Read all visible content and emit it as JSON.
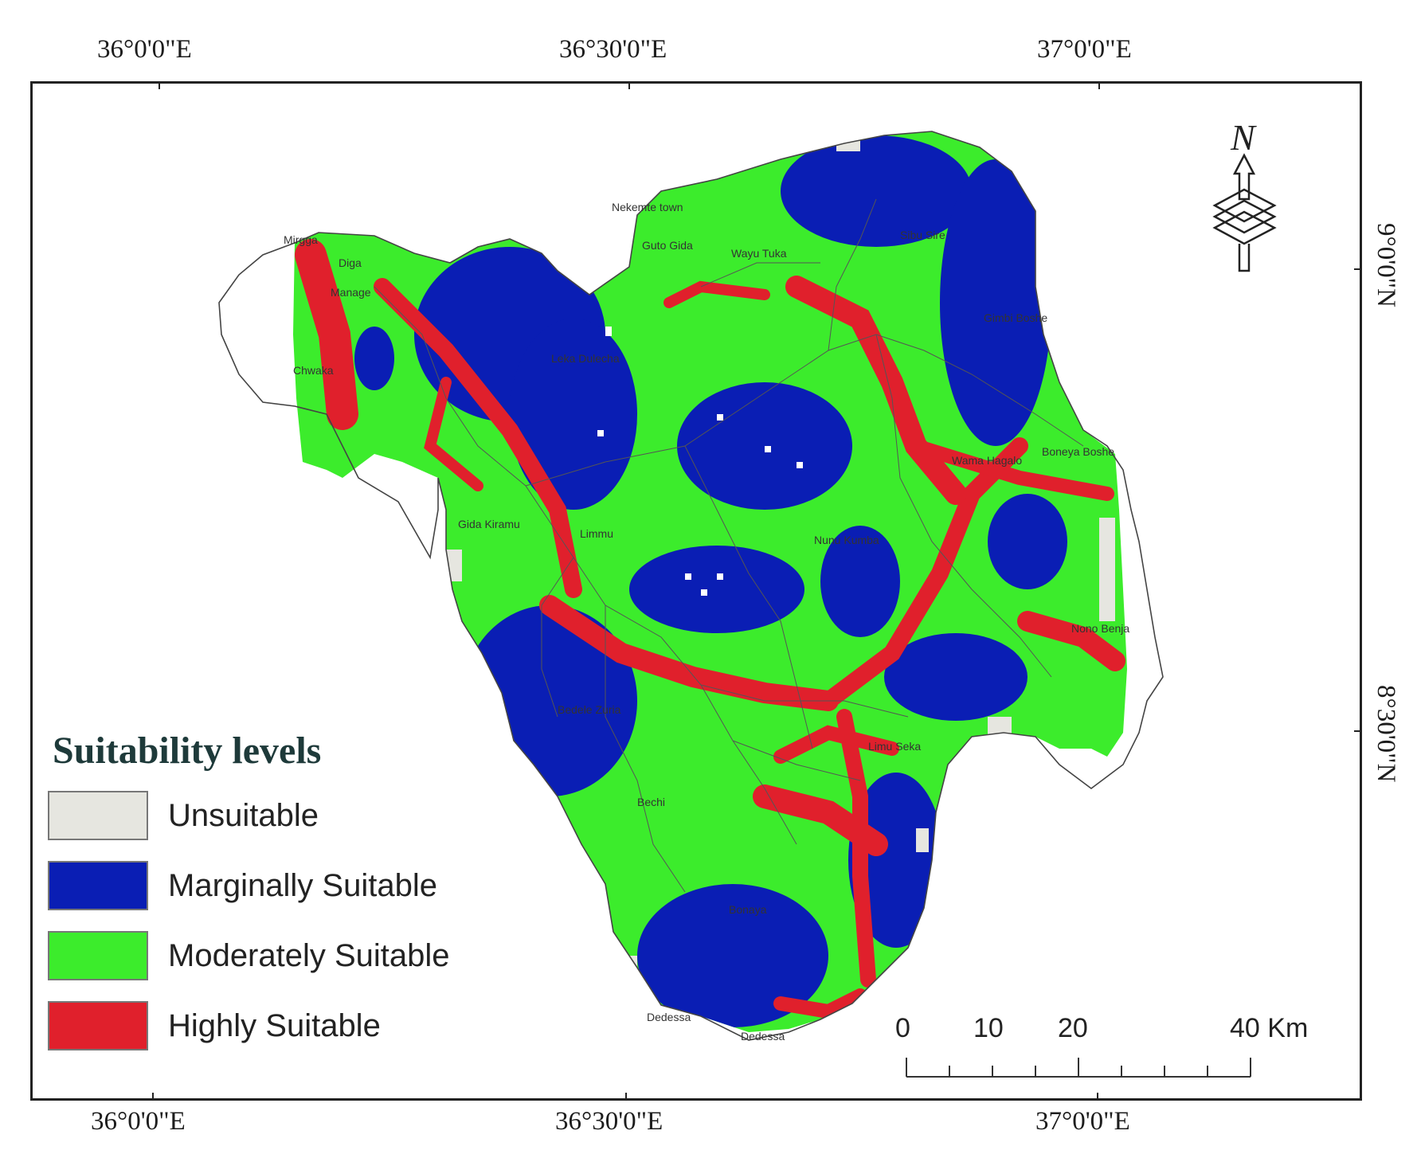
{
  "coords": {
    "top": [
      "36°0'0\"E",
      "36°30'0\"E",
      "37°0'0\"E"
    ],
    "bottom": [
      "36°0'0\"E",
      "36°30'0\"E",
      "37°0'0\"E"
    ],
    "right": [
      "9°0'0\"N",
      "8°30'0\"N"
    ]
  },
  "legend": {
    "title": "Suitability levels",
    "items": [
      {
        "label": "Unsuitable",
        "color": "#e6e6e0"
      },
      {
        "label": "Marginally Suitable",
        "color": "#0a1eb4"
      },
      {
        "label": "Moderately Suitable",
        "color": "#3cec2c"
      },
      {
        "label": "Highly Suitable",
        "color": "#e0202c"
      }
    ]
  },
  "scale_bar": {
    "labels": [
      "0",
      "10",
      "20",
      "40 Km"
    ]
  },
  "north_arrow": {
    "letter": "N",
    "icon": "north-arrow-icon"
  },
  "places": [
    "Nekemte town",
    "Guto Gida",
    "Wayu Tuka",
    "Sibu Sire",
    "Mirgga",
    "Diga",
    "Manage",
    "Chwaka",
    "Leka Dulecha",
    "Gimbi Boshe",
    "Boneya Boshe",
    "Wama Hagalo",
    "Nunu Kumba",
    "Limmu",
    "Gida Kiramu",
    "Nono Benja",
    "Bedele Zuria",
    "Limu Seka",
    "Dedessa",
    "Dedessa",
    "Bechi",
    "Bonaya"
  ]
}
